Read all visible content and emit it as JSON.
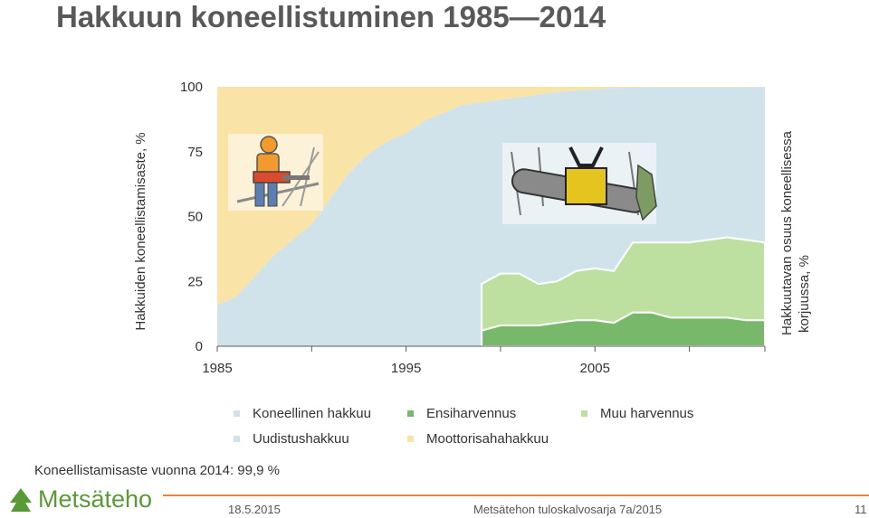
{
  "slide": {
    "title": "Hakkuun koneellistuminen 1985—2014",
    "note": "Koneellistamisaste vuonna 2014:  99,9 %",
    "footer_date": "18.5.2015",
    "footer_series": "Metsätehon tuloskalvosarja 7a/2015",
    "footer_page": "11",
    "logo_text": "Metsäteho",
    "logo_icon": "tree-logo-icon",
    "illustrations": [
      "chainsaw-worker-icon",
      "harvester-head-icon"
    ]
  },
  "chart_data": {
    "type": "area",
    "ylabel_left": "Hakkuiden koneellistamisaste, %",
    "ylabel_right": "Hakkuutavan osuus koneellisessa korjuussa, %",
    "ylim": [
      0,
      100
    ],
    "yticks": [
      "0",
      "25",
      "50",
      "75",
      "100"
    ],
    "xtick_labels": [
      "1985",
      "1995",
      "2005"
    ],
    "xlim": [
      1985,
      2014
    ],
    "grid": false,
    "legend_position": "bottom",
    "colors": {
      "Koneellinen hakkuu": "#d1e3ea",
      "Moottorisahahakkuu": "#f9e3a6",
      "Ensiharvennus": "#78b86a",
      "Muu harvennus": "#bde0a1",
      "Uudistushakkuu": "#d1e3ea"
    },
    "legend": [
      "Koneellinen hakkuu",
      "Ensiharvennus",
      "Muu harvennus",
      "Uudistushakkuu",
      "Moottorisahahakkuu"
    ],
    "x": [
      1985,
      1986,
      1987,
      1988,
      1989,
      1990,
      1991,
      1992,
      1993,
      1994,
      1995,
      1996,
      1997,
      1998,
      1999,
      2000,
      2001,
      2002,
      2003,
      2004,
      2005,
      2006,
      2007,
      2008,
      2009,
      2010,
      2011,
      2012,
      2013,
      2014
    ],
    "series": [
      {
        "name": "Koneellinen hakkuu",
        "values": [
          16,
          19,
          27,
          35,
          41,
          47,
          57,
          67,
          74,
          79,
          82,
          87,
          90,
          93,
          94,
          95,
          96,
          97,
          98,
          98.5,
          99,
          99.5,
          99.7,
          99.8,
          99.8,
          99.8,
          99.8,
          99.8,
          99.8,
          99.9
        ]
      },
      {
        "name": "Moottorisahahakkuu",
        "values": [
          84,
          81,
          73,
          65,
          59,
          53,
          43,
          33,
          26,
          21,
          18,
          13,
          10,
          7,
          6,
          5,
          4,
          3,
          2,
          1.5,
          1,
          0.5,
          0.3,
          0.2,
          0.2,
          0.2,
          0.2,
          0.2,
          0.2,
          0.1
        ]
      },
      {
        "name": "Ensiharvennus",
        "x": [
          1999,
          2000,
          2001,
          2002,
          2003,
          2004,
          2005,
          2006,
          2007,
          2008,
          2009,
          2010,
          2011,
          2012,
          2013,
          2014
        ],
        "values": [
          6,
          8,
          8,
          8,
          9,
          10,
          10,
          9,
          13,
          13,
          11,
          11,
          11,
          11,
          10,
          10
        ]
      },
      {
        "name": "Muu harvennus",
        "x": [
          1999,
          2000,
          2001,
          2002,
          2003,
          2004,
          2005,
          2006,
          2007,
          2008,
          2009,
          2010,
          2011,
          2012,
          2013,
          2014
        ],
        "values": [
          18,
          20,
          20,
          16,
          16,
          19,
          20,
          20,
          27,
          27,
          29,
          29,
          30,
          31,
          31,
          30
        ]
      },
      {
        "name": "Uudistushakkuu",
        "x": [
          1999,
          2000,
          2001,
          2002,
          2003,
          2004,
          2005,
          2006,
          2007,
          2008,
          2009,
          2010,
          2011,
          2012,
          2013,
          2014
        ],
        "values": [
          76,
          72,
          72,
          76,
          75,
          71,
          70,
          71,
          60,
          60,
          60,
          60,
          59,
          58,
          59,
          60
        ]
      }
    ]
  }
}
